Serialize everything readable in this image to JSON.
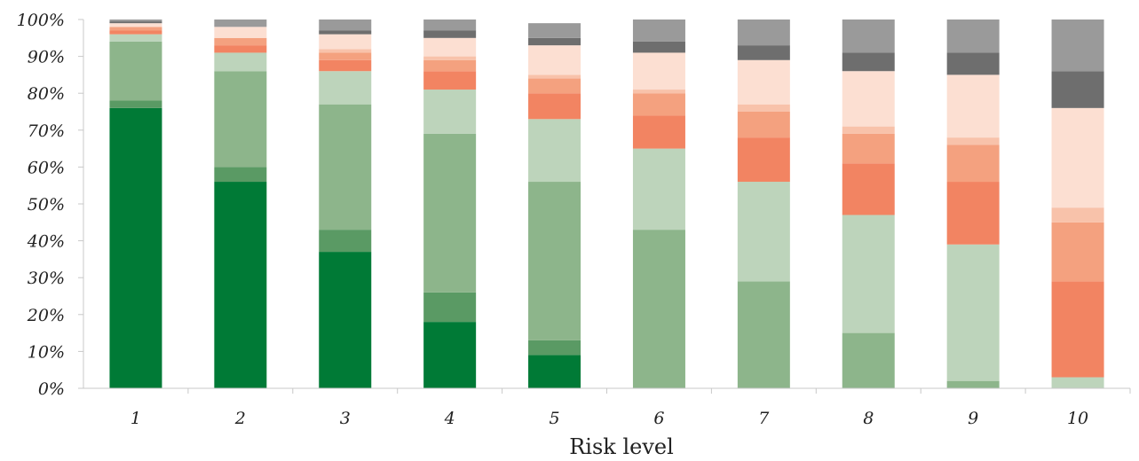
{
  "chart_data": {
    "type": "bar",
    "stacked": true,
    "percent": true,
    "xlabel": "Risk level",
    "ylabel": "",
    "title": "",
    "ylim": [
      0,
      100
    ],
    "yticks": [
      "0%",
      "10%",
      "20%",
      "30%",
      "40%",
      "50%",
      "60%",
      "70%",
      "80%",
      "90%",
      "100%"
    ],
    "categories": [
      "1",
      "2",
      "3",
      "4",
      "5",
      "6",
      "7",
      "8",
      "9",
      "10"
    ],
    "grid": false,
    "legend": "none",
    "series": [
      {
        "color": "#007a36",
        "values": [
          76,
          56,
          37,
          18,
          9,
          0,
          0,
          0,
          0,
          0
        ]
      },
      {
        "color": "#5a9a64",
        "values": [
          2,
          4,
          6,
          8,
          4,
          0,
          0,
          0,
          0,
          0
        ]
      },
      {
        "color": "#8db58b",
        "values": [
          16,
          26,
          34,
          43,
          43,
          43,
          29,
          15,
          2,
          0
        ]
      },
      {
        "color": "#bdd4bb",
        "values": [
          2,
          5,
          9,
          12,
          17,
          22,
          27,
          32,
          37,
          3
        ]
      },
      {
        "color": "#f28462",
        "values": [
          1,
          2,
          3,
          5,
          7,
          9,
          12,
          14,
          17,
          26
        ]
      },
      {
        "color": "#f4a17f",
        "values": [
          1,
          2,
          2,
          3,
          4,
          6,
          7,
          8,
          10,
          16
        ]
      },
      {
        "color": "#f8c2aa",
        "values": [
          0,
          0,
          1,
          1,
          1,
          1,
          2,
          2,
          2,
          4
        ]
      },
      {
        "color": "#fcdfd2",
        "values": [
          1,
          3,
          4,
          5,
          8,
          10,
          12,
          15,
          17,
          27
        ]
      },
      {
        "color": "#6e6e6e",
        "values": [
          0.5,
          0,
          1,
          2,
          2,
          3,
          4,
          5,
          6,
          10
        ]
      },
      {
        "color": "#9a9a9a",
        "values": [
          0.5,
          2,
          3,
          3,
          4,
          6,
          7,
          9,
          9,
          14
        ]
      }
    ]
  }
}
